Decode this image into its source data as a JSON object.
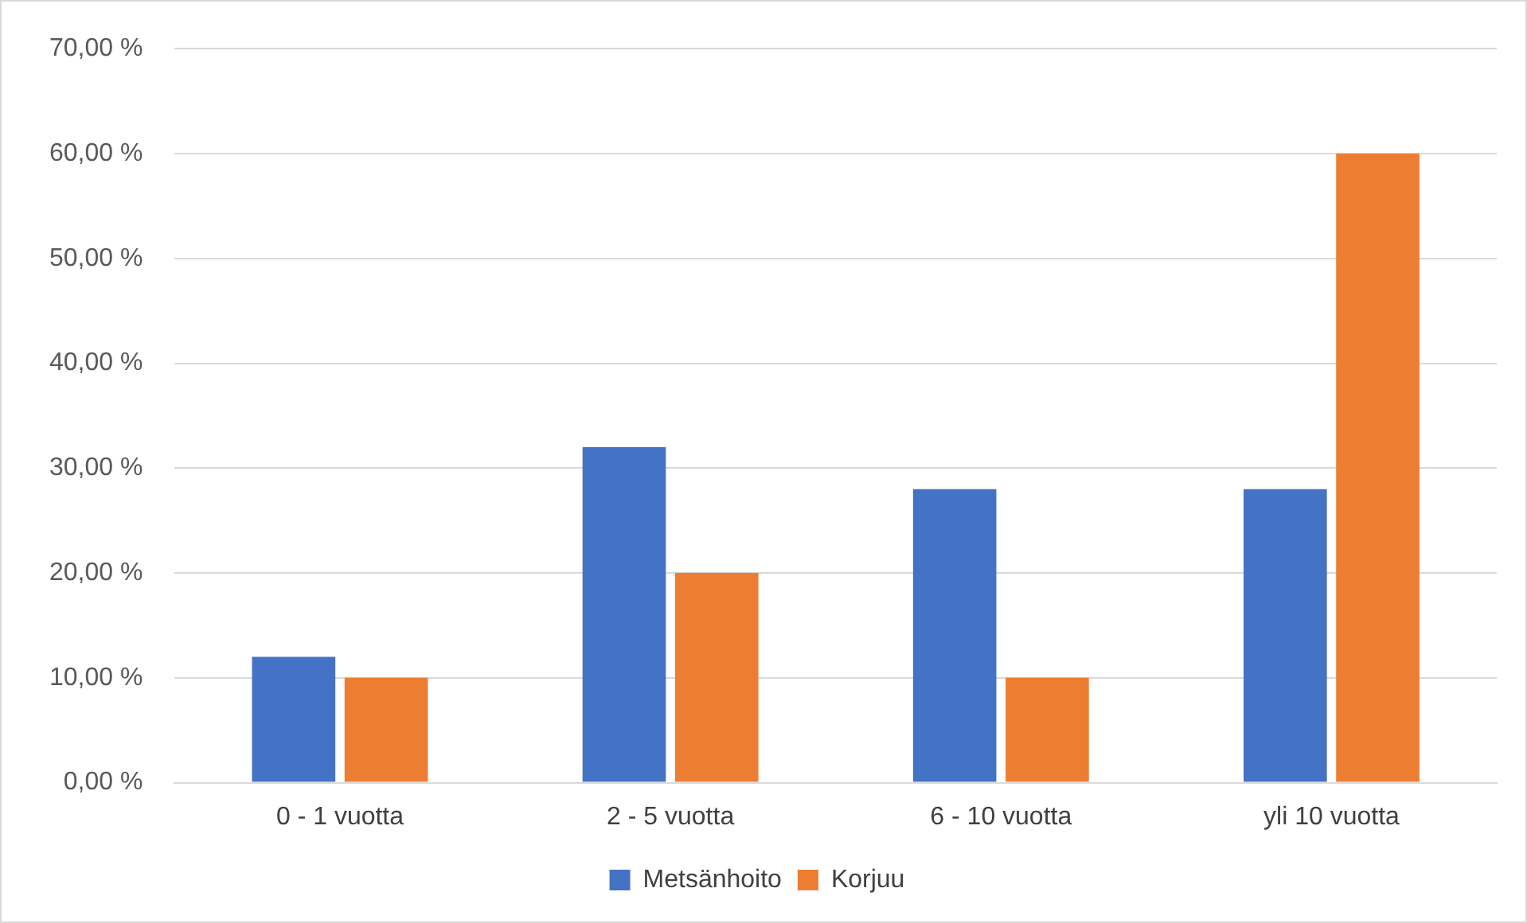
{
  "chart_data": {
    "type": "bar",
    "categories": [
      "0 - 1 vuotta",
      "2 - 5 vuotta",
      "6 - 10 vuotta",
      "yli 10 vuotta"
    ],
    "series": [
      {
        "name": "Metsänhoito",
        "color": "#4472c4",
        "values": [
          12,
          32,
          28,
          28
        ]
      },
      {
        "name": "Korjuu",
        "color": "#ed7d31",
        "values": [
          10,
          20,
          10,
          60
        ]
      }
    ],
    "ylim": [
      0,
      70
    ],
    "yticks": [
      {
        "value": 0,
        "label": "0,00 %"
      },
      {
        "value": 10,
        "label": "10,00 %"
      },
      {
        "value": 20,
        "label": "20,00 %"
      },
      {
        "value": 30,
        "label": "30,00 %"
      },
      {
        "value": 40,
        "label": "40,00 %"
      },
      {
        "value": 50,
        "label": "50,00 %"
      },
      {
        "value": 60,
        "label": "60,00 %"
      },
      {
        "value": 70,
        "label": "70,00 %"
      }
    ],
    "grid": "y",
    "legend": "bottom"
  }
}
